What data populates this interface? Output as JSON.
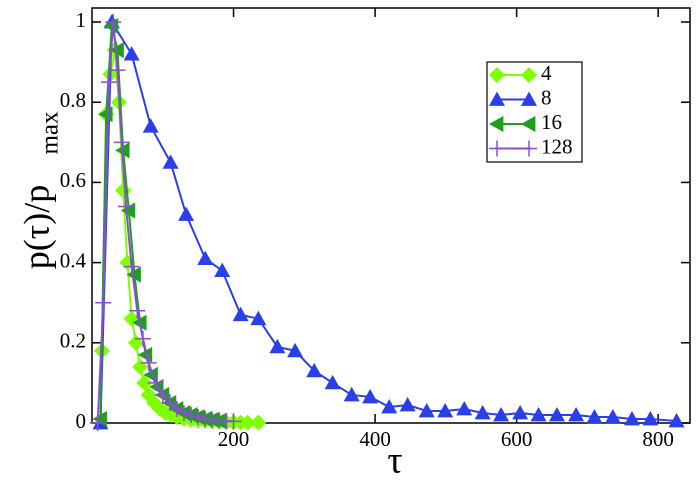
{
  "chart_data": {
    "type": "line",
    "xlabel": "τ",
    "ylabel": "p(τ)/p",
    "ylabel_sub": "max",
    "xlim": [
      0,
      845
    ],
    "ylim": [
      0,
      1.035
    ],
    "xticks": [
      200,
      400,
      600,
      800
    ],
    "yticks": [
      0,
      0.2,
      0.4,
      0.6,
      0.8,
      1
    ],
    "grid": false,
    "legend": "upper right",
    "series": [
      {
        "name": "4",
        "color": "#7fff00",
        "marker": "diamond",
        "x": [
          14,
          20,
          26,
          32,
          38,
          44,
          50,
          56,
          62,
          68,
          74,
          80,
          88,
          96,
          104,
          112,
          120,
          130,
          140,
          150,
          160,
          170,
          180,
          190,
          200,
          210,
          220,
          235
        ],
        "values": [
          0.18,
          0.77,
          0.87,
          0.93,
          0.8,
          0.58,
          0.4,
          0.26,
          0.2,
          0.14,
          0.1,
          0.07,
          0.05,
          0.035,
          0.025,
          0.02,
          0.015,
          0.01,
          0.008,
          0.006,
          0.005,
          0.004,
          0.003,
          0.002,
          0.002,
          0.001,
          0.001,
          0.001
        ]
      },
      {
        "name": "8",
        "color": "#2b3fe6",
        "marker": "triangle-up",
        "x": [
          12,
          28,
          56,
          83,
          111,
          133,
          160,
          184,
          210,
          235,
          262,
          287,
          314,
          340,
          367,
          393,
          420,
          446,
          473,
          499,
          526,
          552,
          578,
          605,
          631,
          657,
          684,
          710,
          736,
          763,
          789,
          826
        ],
        "values": [
          0,
          1,
          0.92,
          0.74,
          0.65,
          0.52,
          0.41,
          0.38,
          0.27,
          0.26,
          0.19,
          0.18,
          0.13,
          0.1,
          0.07,
          0.065,
          0.04,
          0.045,
          0.03,
          0.03,
          0.035,
          0.025,
          0.02,
          0.025,
          0.02,
          0.02,
          0.02,
          0.015,
          0.015,
          0.01,
          0.01,
          0.005
        ]
      },
      {
        "name": "16",
        "color": "#1f9e1f",
        "marker": "triangle-left",
        "x": [
          12,
          20,
          28,
          36,
          44,
          52,
          60,
          68,
          76,
          84,
          92,
          100,
          110,
          120,
          130,
          140,
          150,
          160,
          170,
          180
        ],
        "values": [
          0.01,
          0.77,
          0.99,
          0.93,
          0.68,
          0.53,
          0.37,
          0.25,
          0.17,
          0.12,
          0.09,
          0.07,
          0.05,
          0.035,
          0.025,
          0.02,
          0.015,
          0.01,
          0.008,
          0.005
        ]
      },
      {
        "name": "128",
        "color": "#8a4fd0",
        "marker": "plus",
        "x": [
          8,
          16,
          24,
          30,
          36,
          42,
          48,
          56,
          64,
          72,
          80,
          90,
          100,
          110,
          120,
          130,
          140,
          150,
          160,
          170,
          180,
          190,
          200
        ],
        "values": [
          0,
          0.3,
          0.85,
          1,
          0.88,
          0.7,
          0.54,
          0.39,
          0.28,
          0.21,
          0.15,
          0.1,
          0.07,
          0.05,
          0.035,
          0.025,
          0.02,
          0.015,
          0.01,
          0.008,
          0.006,
          0.005,
          0.004
        ]
      }
    ]
  }
}
